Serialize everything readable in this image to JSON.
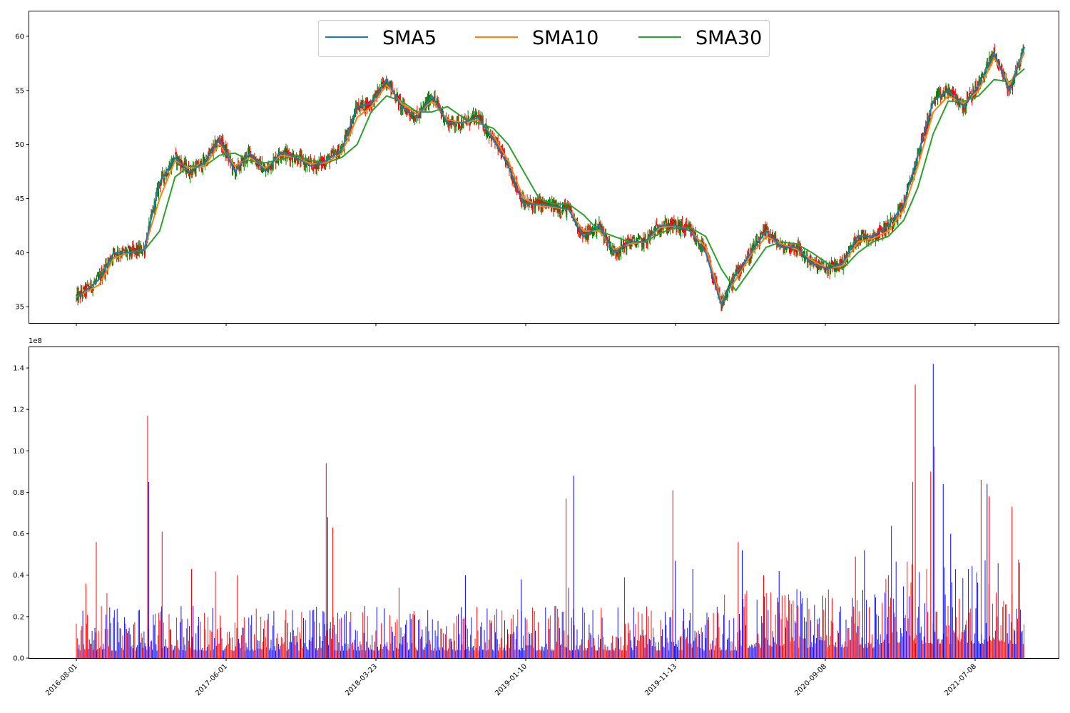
{
  "chart_data": [
    {
      "type": "line",
      "panel": "price",
      "title": "",
      "xlabel": "",
      "ylabel": "",
      "x": [
        "2016-08-01",
        "2016-09-15",
        "2016-10-15",
        "2016-11-15",
        "2016-12-15",
        "2017-01-15",
        "2017-02-15",
        "2017-03-15",
        "2017-04-15",
        "2017-05-15",
        "2017-06-15",
        "2017-07-15",
        "2017-08-15",
        "2017-09-15",
        "2017-10-15",
        "2017-11-15",
        "2017-12-15",
        "2018-01-15",
        "2018-02-15",
        "2018-03-15",
        "2018-04-15",
        "2018-05-15",
        "2018-06-15",
        "2018-07-15",
        "2018-08-15",
        "2018-09-15",
        "2018-10-15",
        "2018-11-15",
        "2018-12-15",
        "2019-01-15",
        "2019-02-15",
        "2019-03-15",
        "2019-04-15",
        "2019-05-15",
        "2019-06-15",
        "2019-07-15",
        "2019-08-15",
        "2019-09-15",
        "2019-10-15",
        "2019-11-15",
        "2019-12-15",
        "2020-01-15",
        "2020-02-15",
        "2020-03-15",
        "2020-04-15",
        "2020-05-15",
        "2020-06-15",
        "2020-07-15",
        "2020-08-15",
        "2020-09-15",
        "2020-10-15",
        "2020-11-15",
        "2020-12-15",
        "2021-01-15",
        "2021-02-15",
        "2021-03-15",
        "2021-04-15",
        "2021-05-15",
        "2021-06-15",
        "2021-07-15",
        "2021-08-15",
        "2021-09-15",
        "2021-10-15"
      ],
      "series": [
        {
          "name": "SMA5",
          "color": "#1f77b4",
          "values": [
            35.8,
            37.5,
            40.0,
            40.0,
            40.3,
            46.5,
            48.8,
            47.5,
            48.3,
            50.5,
            47.5,
            49.2,
            47.5,
            49.3,
            48.8,
            48.0,
            48.5,
            49.5,
            53.5,
            53.8,
            56.0,
            53.5,
            52.5,
            54.5,
            52.0,
            52.0,
            52.5,
            50.5,
            48.0,
            44.5,
            44.5,
            44.3,
            44.0,
            41.5,
            42.5,
            40.0,
            41.0,
            41.0,
            42.5,
            42.5,
            42.0,
            40.0,
            35.2,
            38.0,
            40.0,
            42.0,
            40.5,
            40.5,
            39.0,
            38.5,
            39.0,
            41.5,
            41.5,
            42.5,
            44.5,
            49.0,
            54.0,
            55.0,
            53.5,
            55.5,
            58.5,
            55.0,
            59.0
          ]
        },
        {
          "name": "SMA10",
          "color": "#ff7f0e",
          "values": [
            35.9,
            37.0,
            39.5,
            40.0,
            40.3,
            45.0,
            48.5,
            47.8,
            48.0,
            50.0,
            48.0,
            48.8,
            47.8,
            49.0,
            48.8,
            48.2,
            48.3,
            49.2,
            52.5,
            53.5,
            55.5,
            53.8,
            52.8,
            54.0,
            52.3,
            52.0,
            52.3,
            50.8,
            48.5,
            45.0,
            44.3,
            44.2,
            44.0,
            42.0,
            42.0,
            40.3,
            40.8,
            41.0,
            42.3,
            42.5,
            42.0,
            40.5,
            35.5,
            37.5,
            39.8,
            41.5,
            40.8,
            40.3,
            39.3,
            38.5,
            38.8,
            41.0,
            41.3,
            42.0,
            44.0,
            48.0,
            53.0,
            54.5,
            53.8,
            55.0,
            58.0,
            55.5,
            58.5
          ]
        },
        {
          "name": "SMA30",
          "color": "#2ca02c",
          "values": [
            null,
            38.0,
            39.5,
            40.0,
            40.2,
            42.0,
            47.0,
            48.0,
            48.0,
            49.0,
            49.2,
            48.5,
            48.3,
            48.6,
            49.0,
            48.5,
            48.3,
            48.8,
            50.0,
            53.0,
            54.5,
            54.0,
            53.0,
            53.0,
            53.5,
            52.5,
            52.0,
            51.5,
            50.0,
            47.5,
            45.0,
            44.5,
            44.5,
            43.5,
            42.0,
            41.5,
            41.0,
            41.0,
            41.8,
            42.3,
            42.3,
            41.5,
            38.5,
            36.5,
            38.5,
            40.5,
            41.0,
            40.8,
            40.0,
            39.0,
            38.5,
            40.0,
            41.0,
            41.5,
            43.0,
            46.0,
            51.0,
            54.0,
            54.0,
            54.5,
            56.0,
            55.8,
            57.0
          ]
        }
      ],
      "ylim": [
        33.5,
        62.3
      ],
      "yticks": [
        35,
        40,
        45,
        50,
        55,
        60
      ],
      "legend": {
        "placement": "top-center",
        "entries": [
          "SMA5",
          "SMA10",
          "SMA30"
        ]
      },
      "candle_colors": {
        "up": "#008000",
        "down": "#ff0000"
      },
      "grid": false
    },
    {
      "type": "bar",
      "panel": "volume",
      "title": "",
      "xlabel": "",
      "ylabel": "",
      "offset_label": "1e8",
      "ylim": [
        0,
        1.5
      ],
      "yticks": [
        "0.0",
        "0.2",
        "0.4",
        "0.6",
        "0.8",
        "1.0",
        "1.2",
        "1.4"
      ],
      "xticks": [
        "2016-08-01",
        "2017-06-01",
        "2018-03-23",
        "2019-01-10",
        "2019-11-13",
        "2020-09-08",
        "2021-07-08"
      ],
      "bar_colors": {
        "up": "#0000ff",
        "down": "#ff0000"
      },
      "baseline_level": 0.12,
      "peaks": [
        {
          "x": "2016-08-20",
          "value": 0.36,
          "color": "#ff0000"
        },
        {
          "x": "2016-09-10",
          "value": 0.56,
          "color": "#ff0000"
        },
        {
          "x": "2016-12-22",
          "value": 1.17,
          "color": "#ff0000"
        },
        {
          "x": "2016-12-24",
          "value": 0.85,
          "color": "#0000ff"
        },
        {
          "x": "2017-01-20",
          "value": 0.61,
          "color": "#ff0000"
        },
        {
          "x": "2017-03-20",
          "value": 0.43,
          "color": "#ff0000"
        },
        {
          "x": "2017-06-20",
          "value": 0.4,
          "color": "#ff0000"
        },
        {
          "x": "2017-12-15",
          "value": 0.94,
          "color": "#ff0000"
        },
        {
          "x": "2017-12-18",
          "value": 0.68,
          "color": "#0000ff"
        },
        {
          "x": "2017-12-28",
          "value": 0.63,
          "color": "#ff0000"
        },
        {
          "x": "2018-05-10",
          "value": 0.34,
          "color": "#ff0000"
        },
        {
          "x": "2018-09-20",
          "value": 0.4,
          "color": "#0000ff"
        },
        {
          "x": "2019-01-10",
          "value": 0.38,
          "color": "#0000ff"
        },
        {
          "x": "2019-04-10",
          "value": 0.77,
          "color": "#ff0000"
        },
        {
          "x": "2019-04-25",
          "value": 0.88,
          "color": "#0000ff"
        },
        {
          "x": "2019-08-05",
          "value": 0.39,
          "color": "#ff0000"
        },
        {
          "x": "2019-11-10",
          "value": 0.81,
          "color": "#ff0000"
        },
        {
          "x": "2019-11-15",
          "value": 0.47,
          "color": "#0000ff"
        },
        {
          "x": "2019-12-20",
          "value": 0.43,
          "color": "#0000ff"
        },
        {
          "x": "2020-03-20",
          "value": 0.56,
          "color": "#ff0000"
        },
        {
          "x": "2020-03-28",
          "value": 0.52,
          "color": "#0000ff"
        },
        {
          "x": "2020-05-10",
          "value": 0.4,
          "color": "#ff0000"
        },
        {
          "x": "2020-06-10",
          "value": 0.42,
          "color": "#0000ff"
        },
        {
          "x": "2020-11-10",
          "value": 0.49,
          "color": "#ff0000"
        },
        {
          "x": "2020-11-28",
          "value": 0.52,
          "color": "#0000ff"
        },
        {
          "x": "2021-01-15",
          "value": 0.4,
          "color": "#ff0000"
        },
        {
          "x": "2021-03-05",
          "value": 0.85,
          "color": "#ff0000"
        },
        {
          "x": "2021-03-10",
          "value": 1.32,
          "color": "#ff0000"
        },
        {
          "x": "2021-04-10",
          "value": 0.9,
          "color": "#ff0000"
        },
        {
          "x": "2021-04-15",
          "value": 1.42,
          "color": "#0000ff"
        },
        {
          "x": "2021-04-17",
          "value": 1.02,
          "color": "#ff0000"
        },
        {
          "x": "2021-05-05",
          "value": 0.84,
          "color": "#0000ff"
        },
        {
          "x": "2021-05-20",
          "value": 0.6,
          "color": "#0000ff"
        },
        {
          "x": "2021-07-20",
          "value": 0.86,
          "color": "#ff0000"
        },
        {
          "x": "2021-08-01",
          "value": 0.84,
          "color": "#0000ff"
        },
        {
          "x": "2021-08-05",
          "value": 0.78,
          "color": "#ff0000"
        },
        {
          "x": "2021-09-20",
          "value": 0.73,
          "color": "#ff0000"
        },
        {
          "x": "2021-10-05",
          "value": 0.46,
          "color": "#ff0000"
        }
      ],
      "grid": false
    }
  ]
}
